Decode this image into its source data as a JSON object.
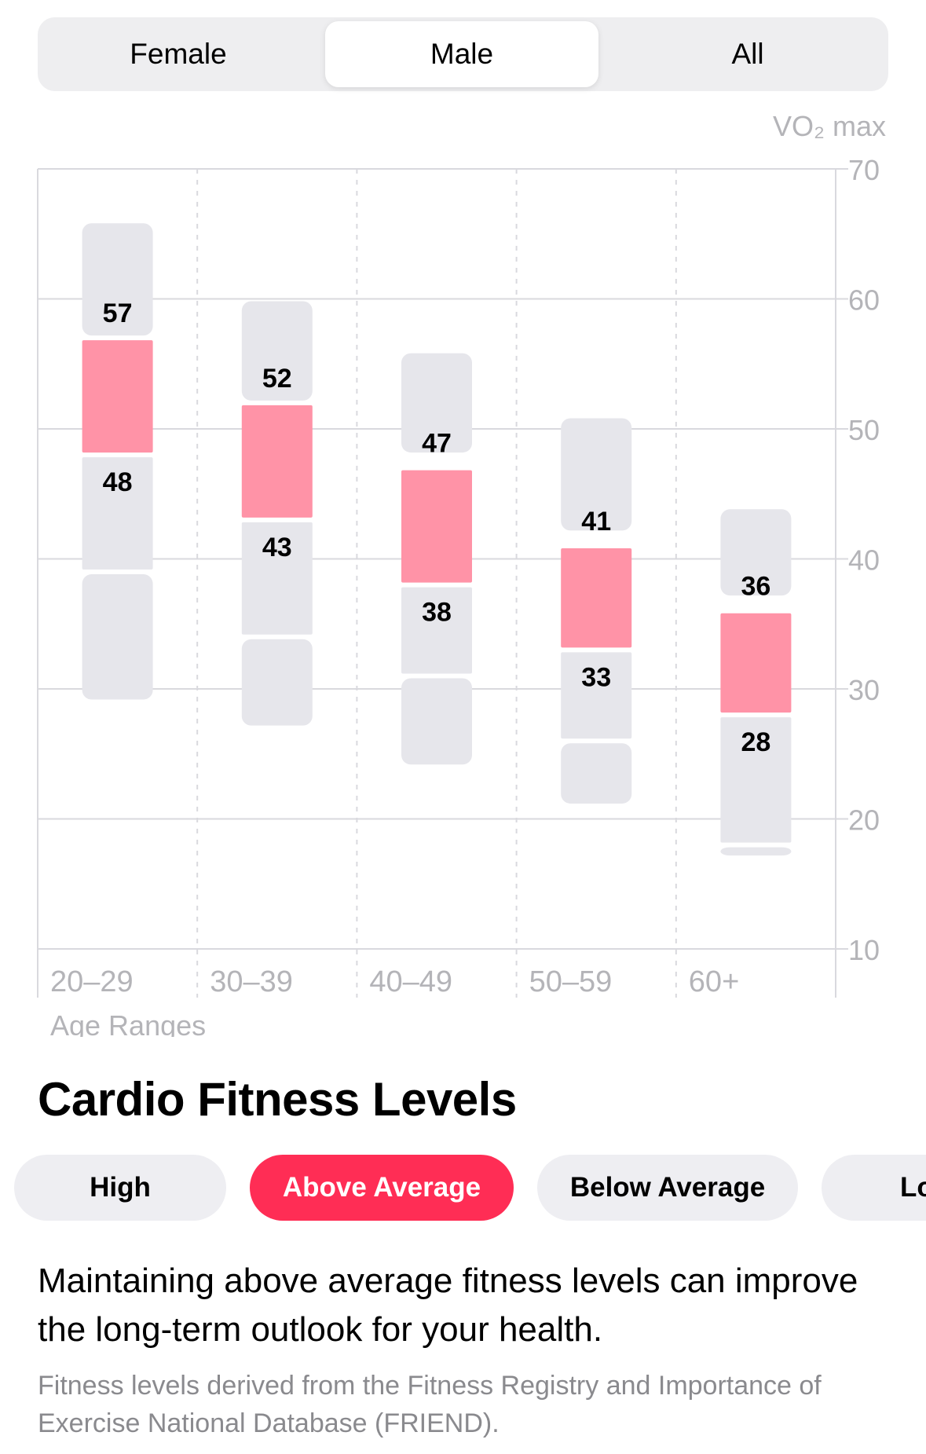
{
  "segments": [
    {
      "label": "Female",
      "selected": false
    },
    {
      "label": "Male",
      "selected": true
    },
    {
      "label": "All",
      "selected": false
    }
  ],
  "chart_data": {
    "type": "bar",
    "y_axis_title": "VO₂ max",
    "xlabel": "Age Ranges",
    "ylim": [
      10,
      70
    ],
    "yticks": [
      70,
      60,
      50,
      40,
      30,
      20,
      10
    ],
    "grid": true,
    "categories": [
      "20–29",
      "30–39",
      "40–49",
      "50–59",
      "60+"
    ],
    "series": [
      {
        "level": "High",
        "ranges": [
          [
            57,
            66
          ],
          [
            52,
            60
          ],
          [
            48,
            56
          ],
          [
            42,
            51
          ],
          [
            37,
            44
          ]
        ]
      },
      {
        "level": "Above Average",
        "ranges": [
          [
            48,
            57
          ],
          [
            43,
            52
          ],
          [
            38,
            47
          ],
          [
            33,
            41
          ],
          [
            28,
            36
          ]
        ]
      },
      {
        "level": "Below Average",
        "ranges": [
          [
            39,
            48
          ],
          [
            34,
            43
          ],
          [
            31,
            38
          ],
          [
            26,
            33
          ],
          [
            18,
            28
          ]
        ]
      },
      {
        "level": "Low",
        "ranges": [
          [
            29,
            39
          ],
          [
            27,
            34
          ],
          [
            24,
            31
          ],
          [
            21,
            26
          ],
          [
            17,
            18
          ]
        ]
      }
    ],
    "upper_labels": [
      "57",
      "52",
      "47",
      "41",
      "36"
    ],
    "lower_labels": [
      "48",
      "43",
      "38",
      "33",
      "28"
    ],
    "colors": {
      "highlight": "#ff93a7",
      "bar": "#e6e6eb",
      "grid": "#d9d9de",
      "axis_text": "#b4b4b8",
      "value_text": "#000000"
    }
  },
  "section_title": "Cardio Fitness Levels",
  "levels": [
    {
      "label": "High",
      "selected": false
    },
    {
      "label": "Above Average",
      "selected": true
    },
    {
      "label": "Below Average",
      "selected": false
    },
    {
      "label": "Lo",
      "selected": false
    }
  ],
  "description": "Maintaining above average fitness levels can improve the long-term outlook for your health.",
  "source_note": "Fitness levels derived from the Fitness Registry and Importance of Exercise National Database (FRIEND).",
  "accent_color": "#ff2d55"
}
